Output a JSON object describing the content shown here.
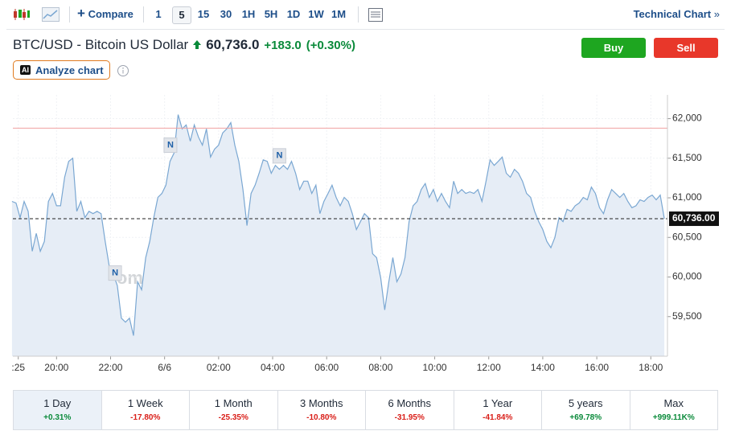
{
  "toolbar": {
    "compare": "Compare",
    "intervals": [
      "1",
      "5",
      "15",
      "30",
      "1H",
      "5H",
      "1D",
      "1W",
      "1M"
    ],
    "active_interval": "5",
    "technical_chart": "Technical Chart"
  },
  "header": {
    "title": "BTC/USD - Bitcoin US Dollar",
    "price": "60,736.0",
    "change": "+183.0",
    "change_percent": "(+0.30%)",
    "buy": "Buy",
    "sell": "Sell",
    "analyze": {
      "badge": "AI",
      "label": "Analyze chart"
    }
  },
  "chart_data": {
    "type": "area",
    "color": "#7aa7d2",
    "fill": "#e6edf6",
    "grid": true,
    "watermark": "Investing.com",
    "x": [
      -99,
      -90,
      -81,
      -72,
      -63,
      -54,
      -45,
      -36,
      -27,
      -18,
      -9,
      0,
      9,
      18,
      27,
      36,
      45,
      54,
      63,
      72,
      81,
      90,
      99,
      108,
      117,
      126,
      135,
      144,
      153,
      162,
      171,
      180,
      189,
      198,
      207,
      216,
      225,
      234,
      243,
      252,
      261,
      270,
      279,
      288,
      297,
      306,
      315,
      324,
      333,
      342,
      351,
      360,
      369,
      378,
      387,
      396,
      405,
      414,
      423,
      432,
      441,
      450,
      459,
      468,
      477,
      486,
      495,
      504,
      513,
      522,
      531,
      540,
      549,
      558,
      567,
      576,
      585,
      594,
      603,
      612,
      621,
      630,
      639,
      648,
      657,
      666,
      675,
      684,
      693,
      702,
      711,
      720,
      729,
      738,
      747,
      756,
      765,
      774,
      783,
      792,
      801,
      810,
      819,
      828,
      837,
      846,
      855,
      864,
      873,
      882,
      891,
      900,
      909,
      918,
      927,
      936,
      945,
      954,
      963,
      972,
      981,
      990,
      999,
      1008,
      1017,
      1026,
      1035,
      1044,
      1053,
      1062,
      1071,
      1080,
      1089,
      1098,
      1107,
      1116,
      1125,
      1134,
      1143,
      1152,
      1161,
      1170,
      1179,
      1188,
      1197,
      1206,
      1215,
      1224,
      1233,
      1242,
      1251,
      1260,
      1269,
      1278,
      1287,
      1296,
      1305,
      1314,
      1323,
      1332,
      1341,
      1350
    ],
    "values": [
      60955,
      60935,
      60750,
      60955,
      60830,
      60325,
      60550,
      60325,
      60450,
      60955,
      61055,
      60900,
      60900,
      61260,
      61460,
      61500,
      60830,
      60955,
      60750,
      60830,
      60800,
      60830,
      60800,
      60450,
      60140,
      60040,
      59890,
      59480,
      59430,
      59480,
      59260,
      59940,
      59840,
      60245,
      60450,
      60750,
      61005,
      61055,
      61160,
      61460,
      61565,
      62050,
      61870,
      61920,
      61715,
      61920,
      61770,
      61665,
      61870,
      61515,
      61615,
      61665,
      61820,
      61870,
      61950,
      61665,
      61460,
      61105,
      60650,
      61055,
      61160,
      61310,
      61480,
      61460,
      61310,
      61410,
      61360,
      61410,
      61360,
      61460,
      61310,
      61105,
      61210,
      61210,
      61055,
      61160,
      60800,
      60955,
      61055,
      61160,
      61005,
      60900,
      61005,
      60955,
      60800,
      60600,
      60700,
      60800,
      60750,
      60295,
      60245,
      59990,
      59585,
      59940,
      60245,
      59940,
      60040,
      60245,
      60700,
      60900,
      60955,
      61105,
      61180,
      61005,
      61105,
      60955,
      61055,
      60955,
      60875,
      61210,
      61055,
      61105,
      61055,
      61075,
      61055,
      61105,
      60955,
      61210,
      61480,
      61410,
      61460,
      61515,
      61310,
      61260,
      61360,
      61310,
      61210,
      61055,
      61005,
      60830,
      60700,
      60600,
      60450,
      60370,
      60500,
      60750,
      60700,
      60855,
      60830,
      60900,
      60935,
      61005,
      60975,
      61135,
      61055,
      60875,
      60800,
      60975,
      61105,
      61055,
      61005,
      61055,
      60955,
      60875,
      60900,
      60975,
      60955,
      61005,
      61035,
      60975,
      61035,
      60736
    ],
    "xlim": [
      -97,
      1357
    ],
    "ylim": [
      59000,
      62300
    ],
    "xticks": [
      {
        "value": -85,
        "label": ":25"
      },
      {
        "value": 0,
        "label": "20:00"
      },
      {
        "value": 120,
        "label": "22:00"
      },
      {
        "value": 240,
        "label": "6/6"
      },
      {
        "value": 360,
        "label": "02:00"
      },
      {
        "value": 480,
        "label": "04:00"
      },
      {
        "value": 600,
        "label": "06:00"
      },
      {
        "value": 720,
        "label": "08:00"
      },
      {
        "value": 840,
        "label": "10:00"
      },
      {
        "value": 960,
        "label": "12:00"
      },
      {
        "value": 1080,
        "label": "14:00"
      },
      {
        "value": 1200,
        "label": "16:00"
      },
      {
        "value": 1320,
        "label": "18:00"
      }
    ],
    "yticks": [
      {
        "value": 59500,
        "label": "59,500"
      },
      {
        "value": 60000,
        "label": "60,000"
      },
      {
        "value": 60500,
        "label": "60,500"
      },
      {
        "value": 61000,
        "label": "61,000"
      },
      {
        "value": 61500,
        "label": "61,500"
      },
      {
        "value": 62000,
        "label": "62,000"
      }
    ],
    "reference_line": 61880,
    "current_price": {
      "value": 60736,
      "label": "60,736.00"
    },
    "annotations": [
      {
        "label": "N",
        "x": 253,
        "y": 61665
      },
      {
        "label": "N",
        "x": 495,
        "y": 61530
      },
      {
        "label": "N",
        "x": 130,
        "y": 60050
      }
    ]
  },
  "periods": [
    {
      "label": "1 Day",
      "change": "+0.31%",
      "active": true
    },
    {
      "label": "1 Week",
      "change": "-17.80%"
    },
    {
      "label": "1 Month",
      "change": "-25.35%"
    },
    {
      "label": "3 Months",
      "change": "-10.80%"
    },
    {
      "label": "6 Months",
      "change": "-31.95%"
    },
    {
      "label": "1 Year",
      "change": "-41.84%"
    },
    {
      "label": "5 years",
      "change": "+69.78%"
    },
    {
      "label": "Max",
      "change": "+999.11K%"
    }
  ]
}
